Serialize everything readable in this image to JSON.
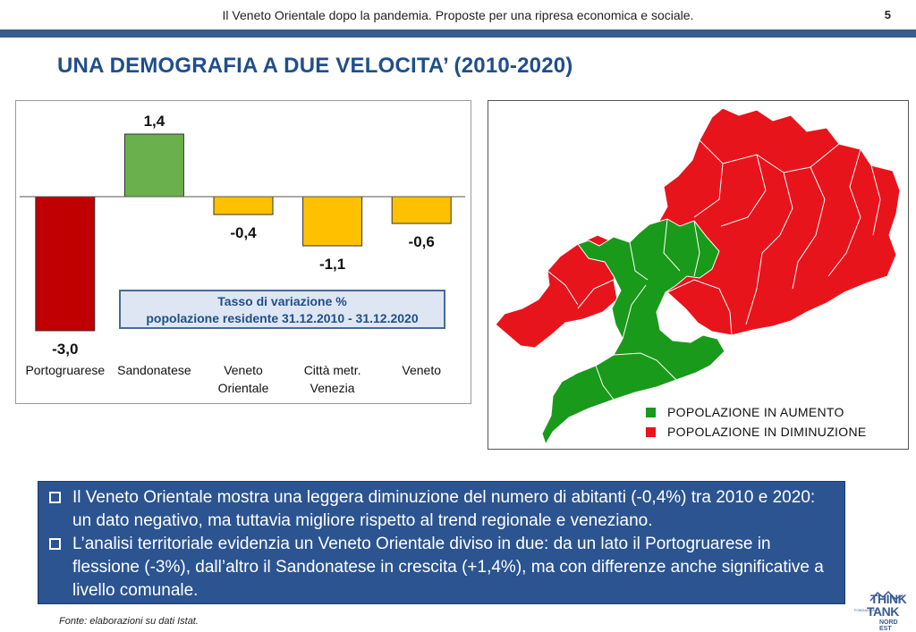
{
  "header": {
    "text": "Il Veneto Orientale dopo la pandemia. Proposte per una ripresa economica e sociale.",
    "page_number": "5"
  },
  "title": "UNA DEMOGRAFIA A DUE VELOCITA’ (2010-2020)",
  "chart_legend": {
    "line1": "Tasso di variazione %",
    "line2": "popolazione residente 31.12.2010 - 31.12.2020"
  },
  "chart_data": {
    "type": "bar",
    "categories": [
      [
        "Portogruarese"
      ],
      [
        "Sandonatese"
      ],
      [
        "Veneto",
        "Orientale"
      ],
      [
        "Città metr.",
        "Venezia"
      ],
      [
        "Veneto"
      ]
    ],
    "values": [
      -3.0,
      1.4,
      -0.4,
      -1.1,
      -0.6
    ],
    "value_labels": [
      "-3,0",
      "1,4",
      "-0,4",
      "-1,1",
      "-0,6"
    ],
    "colors": [
      "#c00000",
      "#6ab04c",
      "#ffc000",
      "#ffc000",
      "#ffc000"
    ],
    "ylim": [
      -3.3,
      1.6
    ],
    "title": "Tasso di variazione % popolazione residente 31.12.2010 - 31.12.2020",
    "xlabel": "",
    "ylabel": ""
  },
  "map": {
    "colors": {
      "increase": "#1a9a1a",
      "decrease": "#e8141c"
    },
    "legend": [
      {
        "label": "POPOLAZIONE IN AUMENTO",
        "color": "#1a9a1a"
      },
      {
        "label": "POPOLAZIONE IN DIMINUZIONE",
        "color": "#e8141c"
      }
    ]
  },
  "bullets": [
    "Il Veneto Orientale mostra una leggera diminuzione del numero di abitanti (-0,4%) tra 2010 e 2020: un dato negativo, ma tuttavia migliore rispetto al trend regionale e veneziano.",
    "L’analisi territoriale evidenzia un Veneto Orientale diviso in due: da un lato il Portogruarese in flessione (-3%), dall’altro il Sandonatese in crescita (+1,4%), ma con differenze anche significative a livello comunale."
  ],
  "source": "Fonte: elaborazioni su dati Istat.",
  "logo": {
    "line1": "THINK",
    "line2": "TANK",
    "line3": "NORD EST",
    "prefix": "FONDAZIONE"
  }
}
